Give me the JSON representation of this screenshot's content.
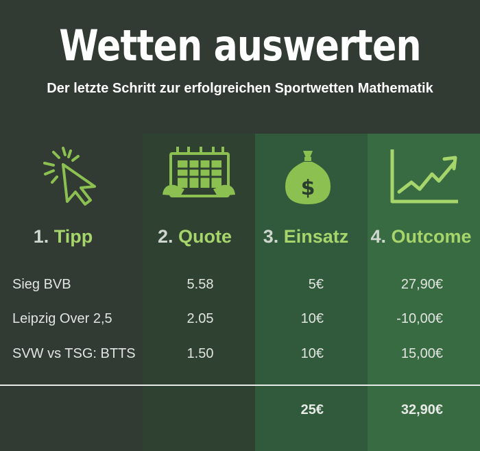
{
  "header": {
    "title": "Wetten auswerten",
    "subtitle": "Der letzte Schritt zur erfolgreichen Sportwetten Mathematik"
  },
  "accent_color": "#a6d56b",
  "columns": [
    {
      "number": "1.",
      "label": "Tipp",
      "icon": "click-cursor-icon"
    },
    {
      "number": "2.",
      "label": "Quote",
      "icon": "betting-slip-icon"
    },
    {
      "number": "3.",
      "label": "Einsatz",
      "icon": "money-bag-icon"
    },
    {
      "number": "4.",
      "label": "Outcome",
      "icon": "growth-chart-icon"
    }
  ],
  "rows": [
    {
      "tipp": "Sieg BVB",
      "quote": "5.58",
      "einsatz": "5€",
      "outcome": "27,90€"
    },
    {
      "tipp": "Leipzig Over 2,5",
      "quote": "2.05",
      "einsatz": "10€",
      "outcome": "-10,00€"
    },
    {
      "tipp": "SVW vs TSG: BTTS",
      "quote": "1.50",
      "einsatz": "10€",
      "outcome": "15,00€"
    }
  ],
  "totals": {
    "einsatz": "25€",
    "outcome": "32,90€"
  }
}
